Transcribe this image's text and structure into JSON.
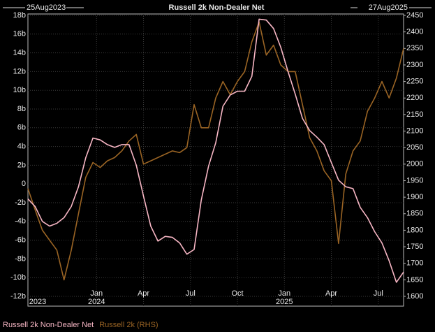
{
  "chart_data": {
    "type": "line",
    "title": "Russell 2k Non-Dealer Net",
    "start_label": "25Aug2023",
    "end_label": "27Aug2025",
    "x": [
      0,
      2,
      4,
      6,
      8,
      10,
      12,
      14,
      16,
      18,
      20,
      22,
      24,
      26,
      28,
      30,
      32,
      34,
      36,
      38,
      40,
      42,
      44,
      46,
      48,
      50,
      52,
      54,
      56,
      58,
      60,
      62,
      64,
      66,
      68,
      70,
      72,
      74,
      76,
      78,
      80,
      82,
      84,
      86,
      88,
      90,
      92,
      94,
      96,
      98,
      100,
      102,
      104
    ],
    "xlim": [
      0,
      104
    ],
    "xticks": [
      {
        "value": 19,
        "label": "Jan"
      },
      {
        "value": 32,
        "label": "Apr"
      },
      {
        "value": 45,
        "label": "Jul"
      },
      {
        "value": 58,
        "label": "Oct"
      },
      {
        "value": 71,
        "label": "Jan"
      },
      {
        "value": 84,
        "label": "Apr"
      },
      {
        "value": 97,
        "label": "Jul"
      }
    ],
    "xyears": [
      {
        "value": 0,
        "label": "2023"
      },
      {
        "value": 19,
        "label": "2024"
      },
      {
        "value": 71,
        "label": "2025"
      }
    ],
    "ylim": [
      -12,
      18
    ],
    "yticks": [
      {
        "value": -12,
        "label": "-12b"
      },
      {
        "value": -10,
        "label": "-10b"
      },
      {
        "value": -8,
        "label": "-8b"
      },
      {
        "value": -6,
        "label": "-6b"
      },
      {
        "value": -4,
        "label": "-4b"
      },
      {
        "value": -2,
        "label": "-2b"
      },
      0,
      {
        "value": 2,
        "label": "2b"
      },
      {
        "value": 4,
        "label": "4b"
      },
      {
        "value": 6,
        "label": "6b"
      },
      {
        "value": 8,
        "label": "8b"
      },
      {
        "value": 10,
        "label": "10b"
      },
      {
        "value": 12,
        "label": "12b"
      },
      {
        "value": 14,
        "label": "14b"
      },
      {
        "value": 16,
        "label": "16b"
      },
      {
        "value": 18,
        "label": "18b"
      }
    ],
    "y2lim": [
      1600,
      2450
    ],
    "y2ticks": [
      1600,
      1650,
      1700,
      1750,
      1800,
      1850,
      1900,
      1950,
      2000,
      2050,
      2100,
      2150,
      2200,
      2250,
      2300,
      2350,
      2400,
      2450
    ],
    "grid": true,
    "series": [
      {
        "name": "Russell 2k Non-Dealer Net",
        "color": "#f7b6c4",
        "values": [
          -1.6,
          -2.4,
          -4,
          -4.5,
          -4.2,
          -3.6,
          -2.4,
          -0.3,
          2.8,
          4.9,
          4.7,
          4.2,
          3.9,
          4.2,
          4.2,
          2,
          -1.3,
          -4.5,
          -6.1,
          -5.6,
          -5.7,
          -6.3,
          -7.5,
          -7,
          -1.7,
          1.9,
          4.4,
          8.3,
          9.5,
          9.9,
          9.9,
          11.5,
          17.6,
          17.5,
          16.6,
          14.6,
          12,
          9.6,
          7,
          5.7,
          5,
          4.2,
          2.3,
          0.4,
          -0.3,
          -0.5,
          -2.5,
          -3.6,
          -5.1,
          -6.3,
          -8.2,
          -10.5,
          -9.4
        ]
      },
      {
        "name": "Russell 2k (RHS)",
        "color": "#9a6424",
        "axis": "y2",
        "values": [
          1926,
          1862,
          1800,
          1770,
          1740,
          1650,
          1740,
          1850,
          1960,
          2005,
          1990,
          2010,
          2020,
          2040,
          2070,
          2090,
          2000,
          2010,
          2020,
          2030,
          2040,
          2035,
          2050,
          2180,
          2110,
          2110,
          2200,
          2250,
          2210,
          2250,
          2280,
          2370,
          2430,
          2330,
          2360,
          2300,
          2280,
          2280,
          2180,
          2080,
          2040,
          1980,
          1950,
          1760,
          1970,
          2040,
          2070,
          2160,
          2200,
          2250,
          2200,
          2260,
          2350
        ]
      }
    ]
  }
}
